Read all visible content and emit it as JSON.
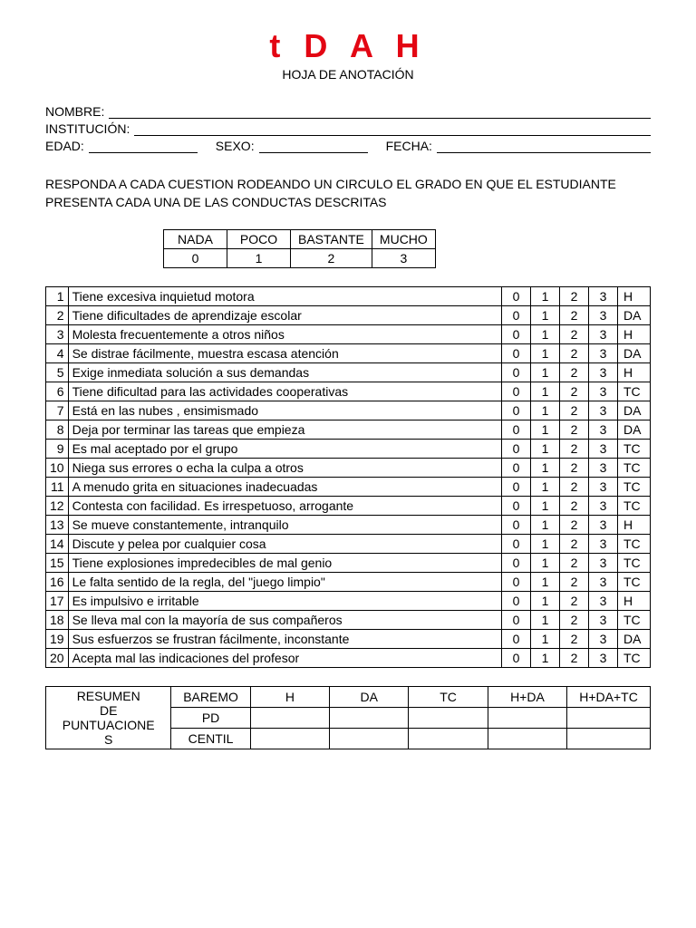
{
  "title": "t D A H",
  "subtitle": "HOJA DE ANOTACIÓN",
  "fields": {
    "nombre": "NOMBRE:",
    "institucion": "INSTITUCIÓN:",
    "edad": "EDAD:",
    "sexo": "SEXO:",
    "fecha": "FECHA:"
  },
  "instructions": "RESPONDA A CADA CUESTION RODEANDO UN CIRCULO EL GRADO EN QUE EL ESTUDIANTE PRESENTA CADA UNA DE LAS CONDUCTAS DESCRITAS",
  "scale": {
    "headers": [
      "NADA",
      "POCO",
      "BASTANTE",
      "MUCHO"
    ],
    "values": [
      "0",
      "1",
      "2",
      "3"
    ]
  },
  "score_options": [
    "0",
    "1",
    "2",
    "3"
  ],
  "items": [
    {
      "n": "1",
      "text": "Tiene excesiva inquietud motora",
      "cat": "H"
    },
    {
      "n": "2",
      "text": "Tiene dificultades de aprendizaje escolar",
      "cat": "DA"
    },
    {
      "n": "3",
      "text": "Molesta frecuentemente a otros niños",
      "cat": "H"
    },
    {
      "n": "4",
      "text": "Se distrae fácilmente, muestra escasa atención",
      "cat": "DA"
    },
    {
      "n": "5",
      "text": "Exige inmediata solución a sus demandas",
      "cat": "H"
    },
    {
      "n": "6",
      "text": "Tiene dificultad para las actividades cooperativas",
      "cat": "TC"
    },
    {
      "n": "7",
      "text": "Está en las nubes , ensimismado",
      "cat": "DA"
    },
    {
      "n": "8",
      "text": "Deja por terminar las tareas que empieza",
      "cat": "DA"
    },
    {
      "n": "9",
      "text": "Es mal aceptado por el grupo",
      "cat": "TC"
    },
    {
      "n": "10",
      "text": "Niega sus errores o echa la culpa a otros",
      "cat": "TC"
    },
    {
      "n": "11",
      "text": "A menudo grita en situaciones inadecuadas",
      "cat": "TC"
    },
    {
      "n": "12",
      "text": "Contesta con facilidad. Es irrespetuoso, arrogante",
      "cat": "TC"
    },
    {
      "n": "13",
      "text": "Se mueve constantemente, intranquilo",
      "cat": "H"
    },
    {
      "n": "14",
      "text": "Discute y pelea por cualquier cosa",
      "cat": "TC"
    },
    {
      "n": "15",
      "text": "Tiene explosiones impredecibles de mal genio",
      "cat": "TC"
    },
    {
      "n": "16",
      "text": "Le falta sentido de la regla, del \"juego limpio\"",
      "cat": "TC"
    },
    {
      "n": "17",
      "text": "Es impulsivo e irritable",
      "cat": "H"
    },
    {
      "n": "18",
      "text": "Se lleva mal con la mayoría de sus compañeros",
      "cat": "TC"
    },
    {
      "n": "19",
      "text": "Sus esfuerzos se frustran fácilmente, inconstante",
      "cat": "DA"
    },
    {
      "n": "20",
      "text": "Acepta mal las indicaciones del profesor",
      "cat": "TC"
    }
  ],
  "summary": {
    "title": "RESUMEN DE PUNTUACIONES",
    "cols": [
      "BAREMO",
      "H",
      "DA",
      "TC",
      "H+DA",
      "H+DA+TC"
    ],
    "rows": [
      "PD",
      "CENTIL"
    ]
  },
  "colors": {
    "title": "#e30613",
    "text": "#000000",
    "bg": "#ffffff"
  }
}
